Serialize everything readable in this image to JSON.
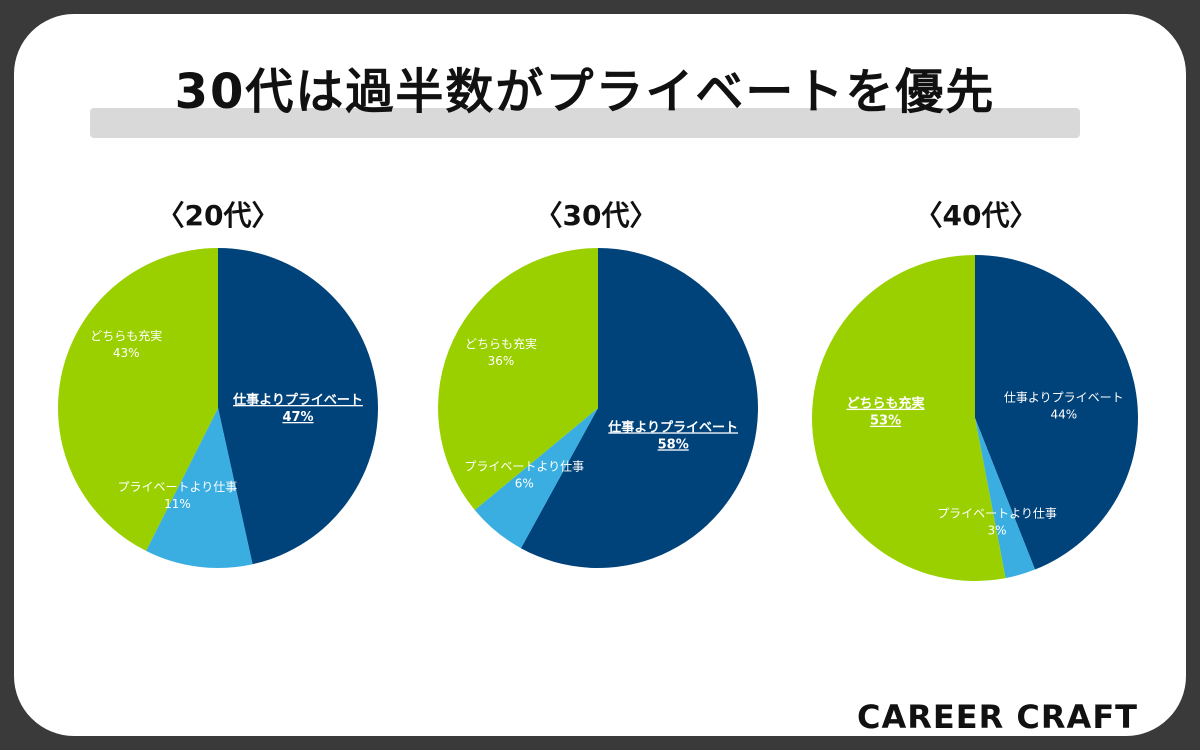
{
  "title": "30代は過半数がプライベートを優先",
  "brand": "CAREER CRAFT",
  "colors": {
    "private_over_work": "#00427a",
    "work_over_private": "#3aaee0",
    "both_fulfilled": "#9ad000",
    "label_text": "#ffffff"
  },
  "chart_data": [
    {
      "type": "pie",
      "title": "〈20代〉",
      "slices": [
        {
          "label": "仕事よりプライベート",
          "value": 47,
          "display": "47%",
          "color": "#00427a",
          "emphasis": true
        },
        {
          "label": "プライベートより仕事",
          "value": 11,
          "display": "11%",
          "color": "#3aaee0",
          "emphasis": false
        },
        {
          "label": "どちらも充実",
          "value": 43,
          "display": "43%",
          "color": "#9ad000",
          "emphasis": false
        }
      ]
    },
    {
      "type": "pie",
      "title": "〈30代〉",
      "slices": [
        {
          "label": "仕事よりプライベート",
          "value": 58,
          "display": "58%",
          "color": "#00427a",
          "emphasis": true
        },
        {
          "label": "プライベートより仕事",
          "value": 6,
          "display": "6%",
          "color": "#3aaee0",
          "emphasis": false
        },
        {
          "label": "どちらも充実",
          "value": 36,
          "display": "36%",
          "color": "#9ad000",
          "emphasis": false
        }
      ]
    },
    {
      "type": "pie",
      "title": "〈40代〉",
      "slices": [
        {
          "label": "仕事よりプライベート",
          "value": 44,
          "display": "44%",
          "color": "#00427a",
          "emphasis": false
        },
        {
          "label": "プライベートより仕事",
          "value": 3,
          "display": "3%",
          "color": "#3aaee0",
          "emphasis": false
        },
        {
          "label": "どちらも充実",
          "value": 53,
          "display": "53%",
          "color": "#9ad000",
          "emphasis": true
        }
      ]
    }
  ]
}
